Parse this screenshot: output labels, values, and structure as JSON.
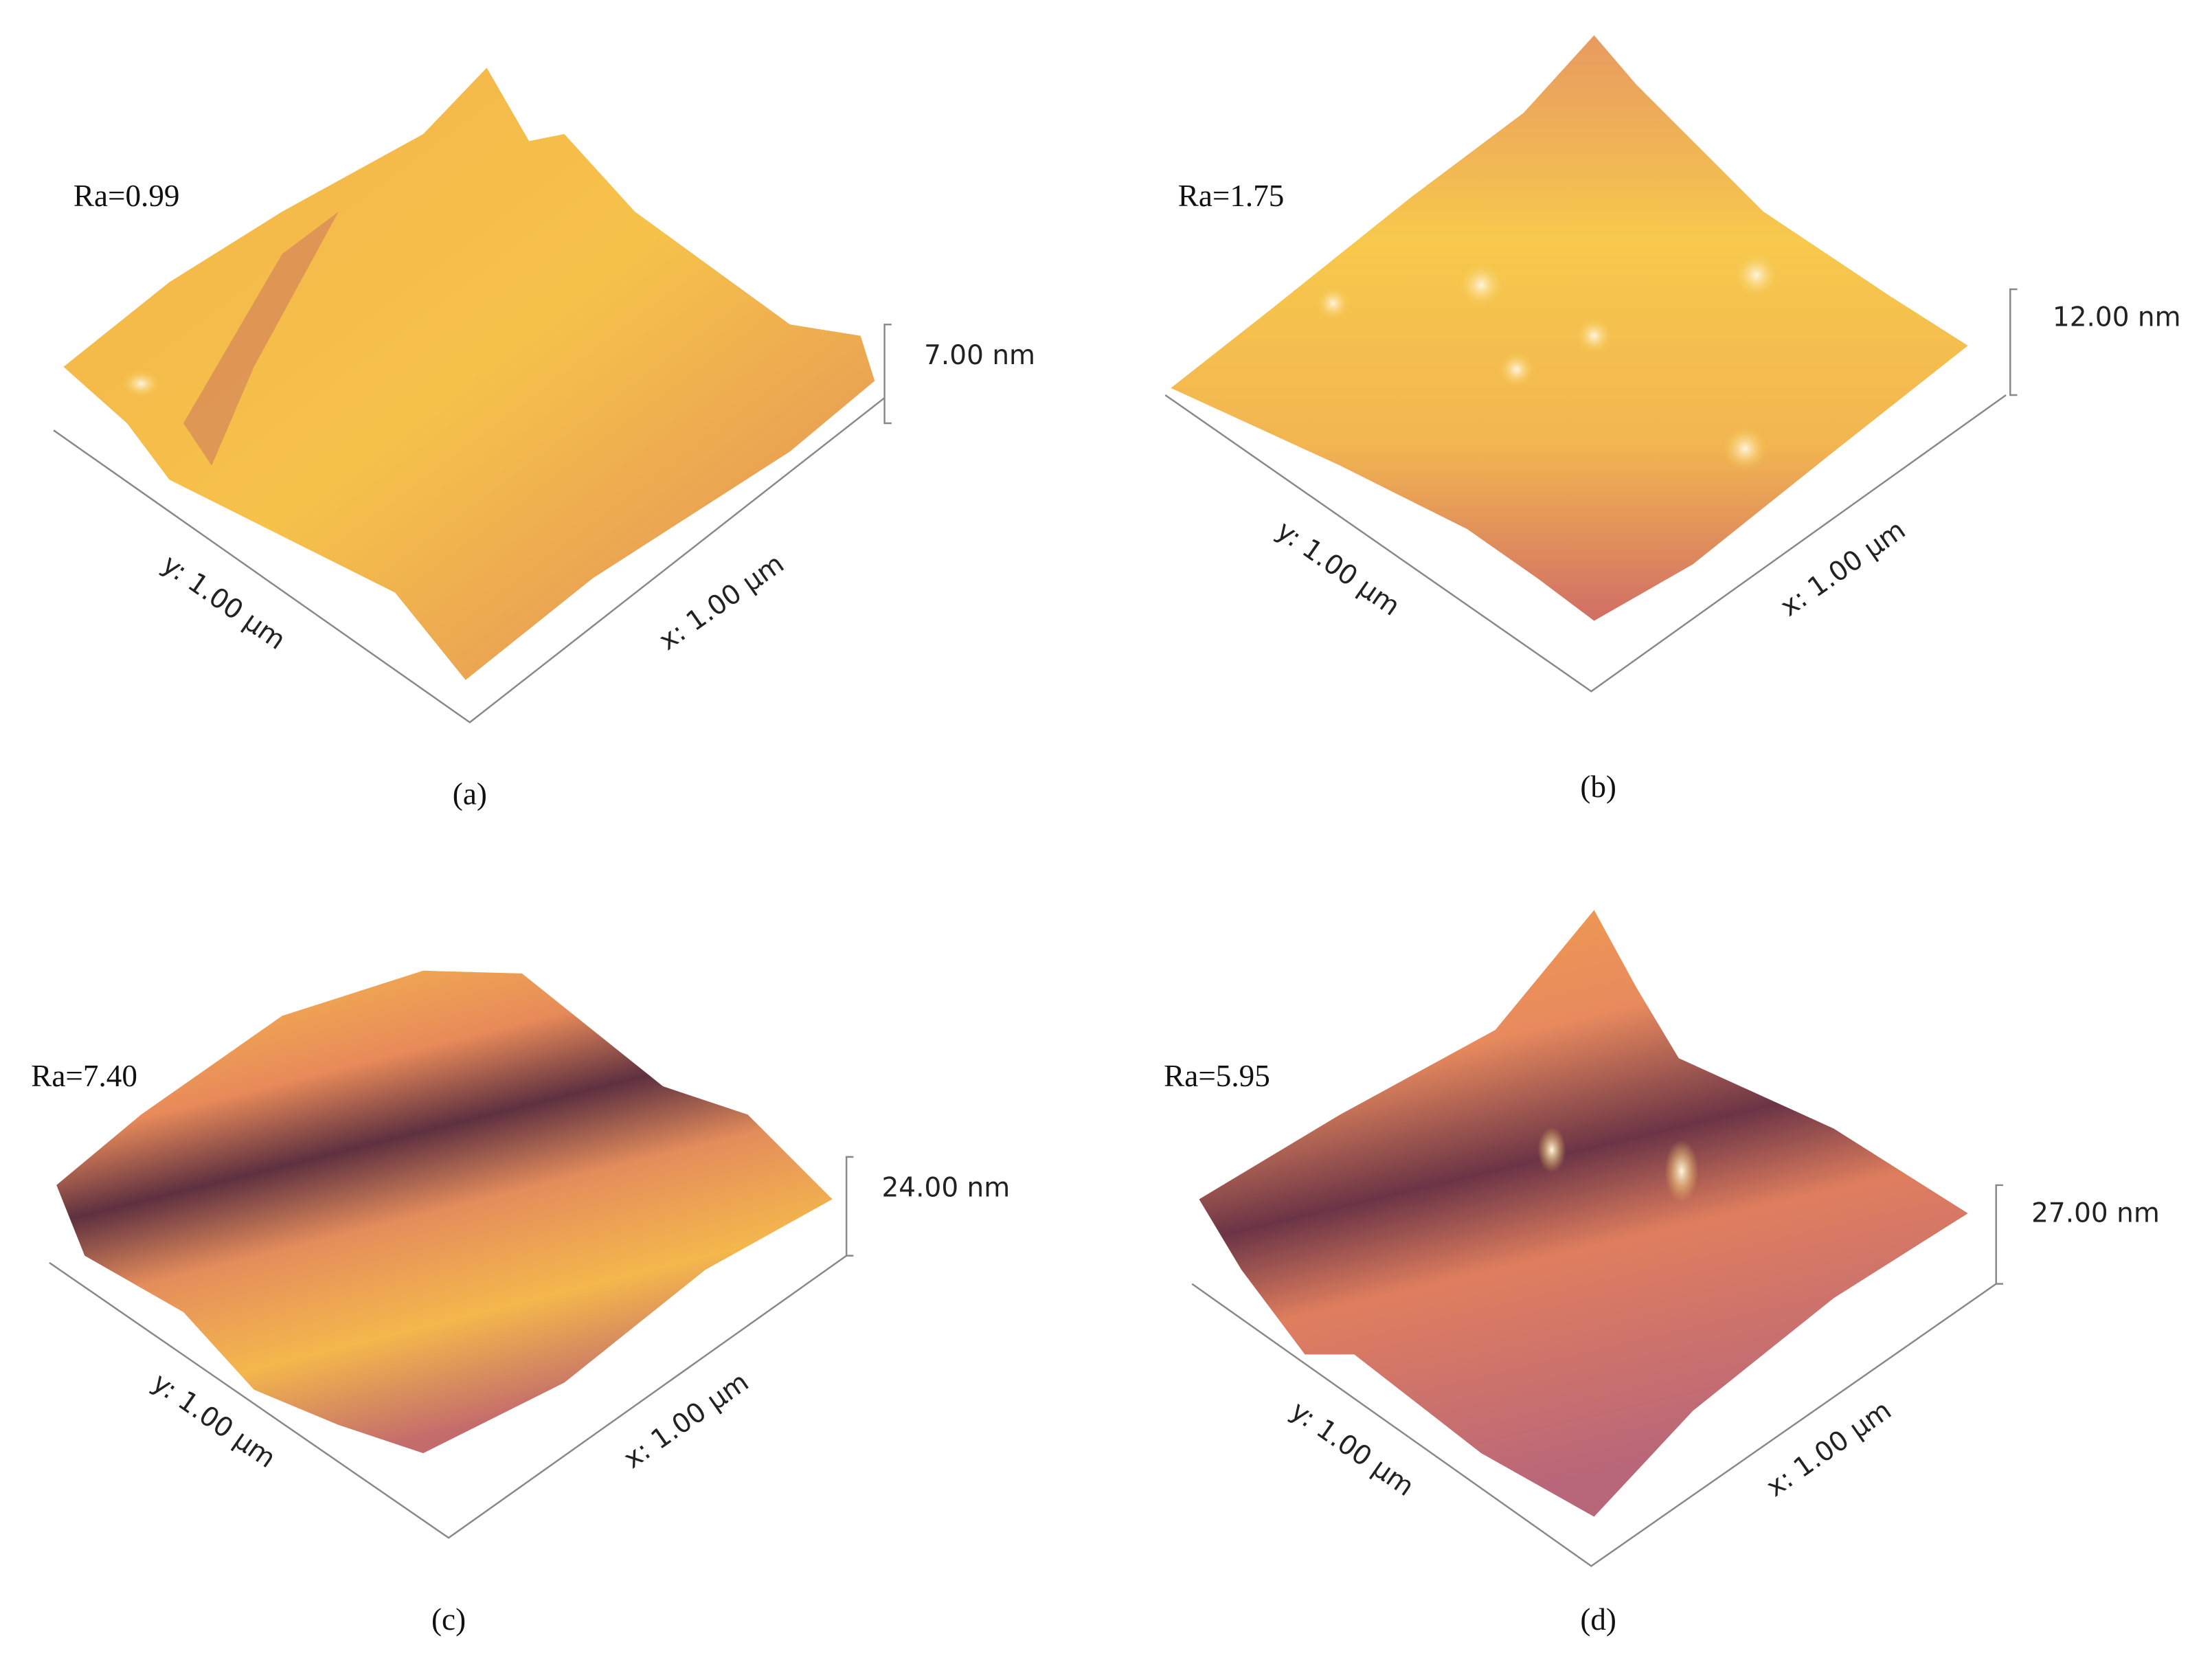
{
  "panels": [
    {
      "ra": "Ra=0.99",
      "z_range": "7.00 nm",
      "x_axis": "x: 1.00 µm",
      "y_axis": "y: 1.00 µm",
      "caption": "(a)"
    },
    {
      "ra": "Ra=1.75",
      "z_range": "12.00 nm",
      "x_axis": "x: 1.00 µm",
      "y_axis": "y: 1.00 µm",
      "caption": "(b)"
    },
    {
      "ra": "Ra=7.40",
      "z_range": "24.00 nm",
      "x_axis": "x: 1.00 µm",
      "y_axis": "y: 1.00 µm",
      "caption": "(c)"
    },
    {
      "ra": "Ra=5.95",
      "z_range": "27.00 nm",
      "x_axis": "x: 1.00 µm",
      "y_axis": "y: 1.00 µm",
      "caption": "(d)"
    }
  ]
}
